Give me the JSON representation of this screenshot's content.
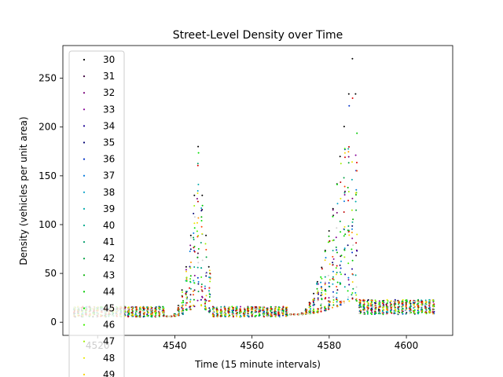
{
  "chart_data": {
    "type": "scatter",
    "title": "Street-Level Density over Time",
    "xlabel": "Time (15 minute intervals)",
    "ylabel": "Density (vehicles per unit area)",
    "xlim": [
      4511,
      4612
    ],
    "ylim": [
      -13.5,
      283.5
    ],
    "xticks": [
      4520,
      4540,
      4560,
      4580,
      4600
    ],
    "yticks": [
      0,
      50,
      100,
      150,
      200,
      250
    ],
    "x_range": [
      4514,
      4607
    ],
    "legend_location": "upper left",
    "series": [
      {
        "name": "30",
        "color": "#000000"
      },
      {
        "name": "31",
        "color": "#3c003c"
      },
      {
        "name": "32",
        "color": "#780078"
      },
      {
        "name": "33",
        "color": "#860096"
      },
      {
        "name": "34",
        "color": "#1a0096"
      },
      {
        "name": "35",
        "color": "#000070"
      },
      {
        "name": "36",
        "color": "#0030c8"
      },
      {
        "name": "37",
        "color": "#0078dc"
      },
      {
        "name": "38",
        "color": "#00a0c8"
      },
      {
        "name": "39",
        "color": "#00aaaa"
      },
      {
        "name": "40",
        "color": "#00a88a"
      },
      {
        "name": "41",
        "color": "#009c6a"
      },
      {
        "name": "42",
        "color": "#00a040"
      },
      {
        "name": "43",
        "color": "#00b000"
      },
      {
        "name": "44",
        "color": "#00c800"
      },
      {
        "name": "45",
        "color": "#00e000"
      },
      {
        "name": "46",
        "color": "#40f000"
      },
      {
        "name": "47",
        "color": "#a0f000"
      },
      {
        "name": "48",
        "color": "#e8e800"
      },
      {
        "name": "49",
        "color": "#f8d000"
      }
    ],
    "extra_point_colors": [
      "#ff9000",
      "#ff4000",
      "#e00000",
      "#c00000",
      "#d0d0d0"
    ],
    "peaks": [
      {
        "x": 4546,
        "max": 180
      },
      {
        "x": 4586,
        "max": 270
      }
    ]
  }
}
